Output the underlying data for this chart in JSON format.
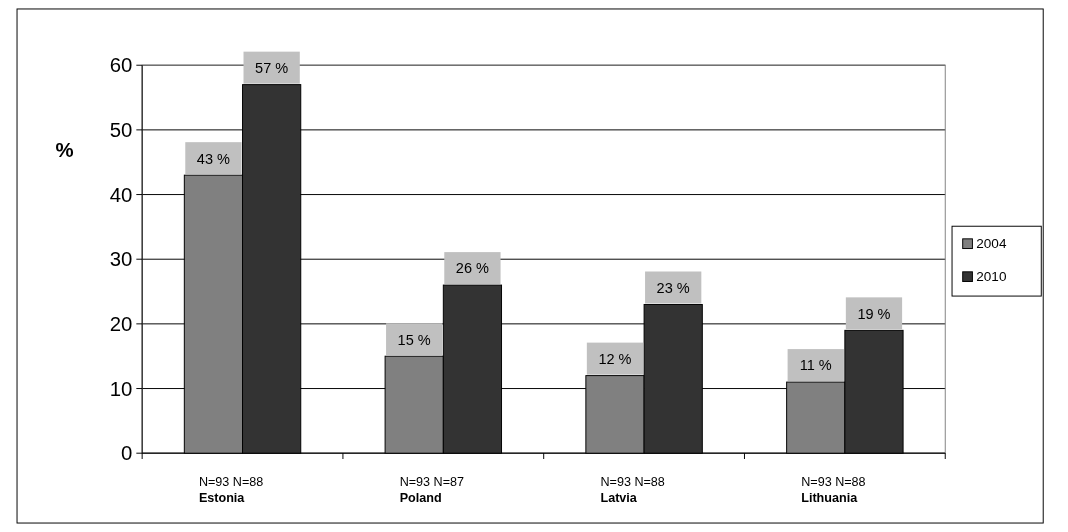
{
  "chart_data": {
    "type": "bar",
    "ylabel": "%",
    "categories": [
      "N=93 N=88\nEstonia",
      "N=93 N=87\nPoland",
      "N=93 N=88\nLatvia",
      "N=93 N=88\nLithuania"
    ],
    "series": [
      {
        "name": "2004",
        "color": "#808080",
        "values": [
          43,
          15,
          12,
          11
        ],
        "value_labels": [
          "43 %",
          "15 %",
          "12 %",
          "11 %"
        ]
      },
      {
        "name": "2010",
        "color": "#333333",
        "values": [
          57,
          26,
          23,
          19
        ],
        "value_labels": [
          "57 %",
          "26 %",
          "23 %",
          "19 %"
        ]
      }
    ],
    "ylim": [
      0,
      60
    ],
    "yticks": [
      0,
      10,
      20,
      30,
      40,
      50,
      60
    ],
    "grid": "y",
    "legend": "right"
  }
}
